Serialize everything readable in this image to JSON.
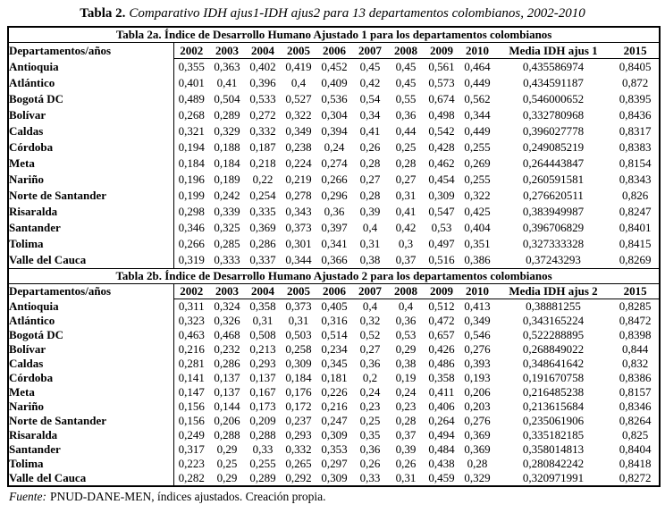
{
  "caption": {
    "label": "Tabla 2.",
    "text": "Comparativo IDH ajus1-IDH ajus2 para 13 departamentos colombianos, 2002-2010"
  },
  "tables": [
    {
      "header": "Tabla 2a. Índice de Desarrollo Humano Ajustado 1 para los departamentos colombianos",
      "columns": [
        "Departamentos/años",
        "2002",
        "2003",
        "2004",
        "2005",
        "2006",
        "2007",
        "2008",
        "2009",
        "2010",
        "Media IDH ajus 1",
        "2015"
      ],
      "rows": [
        {
          "name": "Antioquia",
          "values": [
            "0,355",
            "0,363",
            "0,402",
            "0,419",
            "0,452",
            "0,45",
            "0,45",
            "0,561",
            "0,464",
            "0,435586974",
            "0,8405"
          ]
        },
        {
          "name": "Atlántico",
          "values": [
            "0,401",
            "0,41",
            "0,396",
            "0,4",
            "0,409",
            "0,42",
            "0,45",
            "0,573",
            "0,449",
            "0,434591187",
            "0,872"
          ]
        },
        {
          "name": "Bogotá DC",
          "values": [
            "0,489",
            "0,504",
            "0,533",
            "0,527",
            "0,536",
            "0,54",
            "0,55",
            "0,674",
            "0,562",
            "0,546000652",
            "0,8395"
          ]
        },
        {
          "name": "Bolívar",
          "values": [
            "0,268",
            "0,289",
            "0,272",
            "0,322",
            "0,304",
            "0,34",
            "0,36",
            "0,498",
            "0,344",
            "0,332780968",
            "0,8436"
          ]
        },
        {
          "name": "Caldas",
          "values": [
            "0,321",
            "0,329",
            "0,332",
            "0,349",
            "0,394",
            "0,41",
            "0,44",
            "0,542",
            "0,449",
            "0,396027778",
            "0,8317"
          ]
        },
        {
          "name": "Córdoba",
          "values": [
            "0,194",
            "0,188",
            "0,187",
            "0,238",
            "0,24",
            "0,26",
            "0,25",
            "0,428",
            "0,255",
            "0,249085219",
            "0,8383"
          ]
        },
        {
          "name": "Meta",
          "values": [
            "0,184",
            "0,184",
            "0,218",
            "0,224",
            "0,274",
            "0,28",
            "0,28",
            "0,462",
            "0,269",
            "0,264443847",
            "0,8154"
          ]
        },
        {
          "name": "Nariño",
          "values": [
            "0,196",
            "0,189",
            "0,22",
            "0,219",
            "0,266",
            "0,27",
            "0,27",
            "0,454",
            "0,255",
            "0,260591581",
            "0,8343"
          ]
        },
        {
          "name": "Norte de Santander",
          "values": [
            "0,199",
            "0,242",
            "0,254",
            "0,278",
            "0,296",
            "0,28",
            "0,31",
            "0,309",
            "0,322",
            "0,276620511",
            "0,826"
          ]
        },
        {
          "name": "Risaralda",
          "values": [
            "0,298",
            "0,339",
            "0,335",
            "0,343",
            "0,36",
            "0,39",
            "0,41",
            "0,547",
            "0,425",
            "0,383949987",
            "0,8247"
          ]
        },
        {
          "name": "Santander",
          "values": [
            "0,346",
            "0,325",
            "0,369",
            "0,373",
            "0,397",
            "0,4",
            "0,42",
            "0,53",
            "0,404",
            "0,396706829",
            "0,8401"
          ]
        },
        {
          "name": "Tolima",
          "values": [
            "0,266",
            "0,285",
            "0,286",
            "0,301",
            "0,341",
            "0,31",
            "0,3",
            "0,497",
            "0,351",
            "0,327333328",
            "0,8415"
          ]
        },
        {
          "name": "Valle del Cauca",
          "values": [
            "0,319",
            "0,333",
            "0,337",
            "0,344",
            "0,366",
            "0,38",
            "0,37",
            "0,516",
            "0,386",
            "0,37243293",
            "0,8269"
          ]
        }
      ]
    },
    {
      "header": "Tabla 2b. Índice de Desarrollo Humano Ajustado 2 para los departamentos colombianos",
      "columns": [
        "Departamentos/años",
        "2002",
        "2003",
        "2004",
        "2005",
        "2006",
        "2007",
        "2008",
        "2009",
        "2010",
        "Media IDH ajus 2",
        "2015"
      ],
      "rows": [
        {
          "name": "Antioquia",
          "values": [
            "0,311",
            "0,324",
            "0,358",
            "0,373",
            "0,405",
            "0,4",
            "0,4",
            "0,512",
            "0,413",
            "0,38881255",
            "0,8285"
          ]
        },
        {
          "name": "Atlántico",
          "values": [
            "0,323",
            "0,326",
            "0,31",
            "0,31",
            "0,316",
            "0,32",
            "0,36",
            "0,472",
            "0,349",
            "0,343165224",
            "0,8472"
          ]
        },
        {
          "name": "Bogotá DC",
          "values": [
            "0,463",
            "0,468",
            "0,508",
            "0,503",
            "0,514",
            "0,52",
            "0,53",
            "0,657",
            "0,546",
            "0,522288895",
            "0,8398"
          ]
        },
        {
          "name": "Bolívar",
          "values": [
            "0,216",
            "0,232",
            "0,213",
            "0,258",
            "0,234",
            "0,27",
            "0,29",
            "0,426",
            "0,276",
            "0,268849022",
            "0,844"
          ]
        },
        {
          "name": "Caldas",
          "values": [
            "0,281",
            "0,286",
            "0,293",
            "0,309",
            "0,345",
            "0,36",
            "0,38",
            "0,486",
            "0,393",
            "0,348641642",
            "0,832"
          ]
        },
        {
          "name": "Córdoba",
          "values": [
            "0,141",
            "0,137",
            "0,137",
            "0,184",
            "0,181",
            "0,2",
            "0,19",
            "0,358",
            "0,193",
            "0,191670758",
            "0,8386"
          ]
        },
        {
          "name": "Meta",
          "values": [
            "0,147",
            "0,137",
            "0,167",
            "0,176",
            "0,226",
            "0,24",
            "0,24",
            "0,411",
            "0,206",
            "0,216485238",
            "0,8157"
          ]
        },
        {
          "name": "Nariño",
          "values": [
            "0,156",
            "0,144",
            "0,173",
            "0,172",
            "0,216",
            "0,23",
            "0,23",
            "0,406",
            "0,203",
            "0,213615684",
            "0,8346"
          ]
        },
        {
          "name": "Norte de Santander",
          "values": [
            "0,156",
            "0,206",
            "0,209",
            "0,237",
            "0,247",
            "0,25",
            "0,28",
            "0,264",
            "0,276",
            "0,235061906",
            "0,8264"
          ]
        },
        {
          "name": "Risaralda",
          "values": [
            "0,249",
            "0,288",
            "0,288",
            "0,293",
            "0,309",
            "0,35",
            "0,37",
            "0,494",
            "0,369",
            "0,335182185",
            "0,825"
          ]
        },
        {
          "name": "Santander",
          "values": [
            "0,317",
            "0,29",
            "0,33",
            "0,332",
            "0,353",
            "0,36",
            "0,39",
            "0,484",
            "0,369",
            "0,358014813",
            "0,8404"
          ]
        },
        {
          "name": "Tolima",
          "values": [
            "0,223",
            "0,25",
            "0,255",
            "0,265",
            "0,297",
            "0,26",
            "0,26",
            "0,438",
            "0,28",
            "0,280842242",
            "0,8418"
          ]
        },
        {
          "name": "Valle del Cauca",
          "values": [
            "0,282",
            "0,29",
            "0,289",
            "0,292",
            "0,309",
            "0,33",
            "0,31",
            "0,459",
            "0,329",
            "0,320971991",
            "0,8272"
          ]
        }
      ]
    }
  ],
  "source": {
    "label": "Fuente:",
    "text": "PNUD-DANE-MEN, índices ajustados. Creación propia."
  }
}
